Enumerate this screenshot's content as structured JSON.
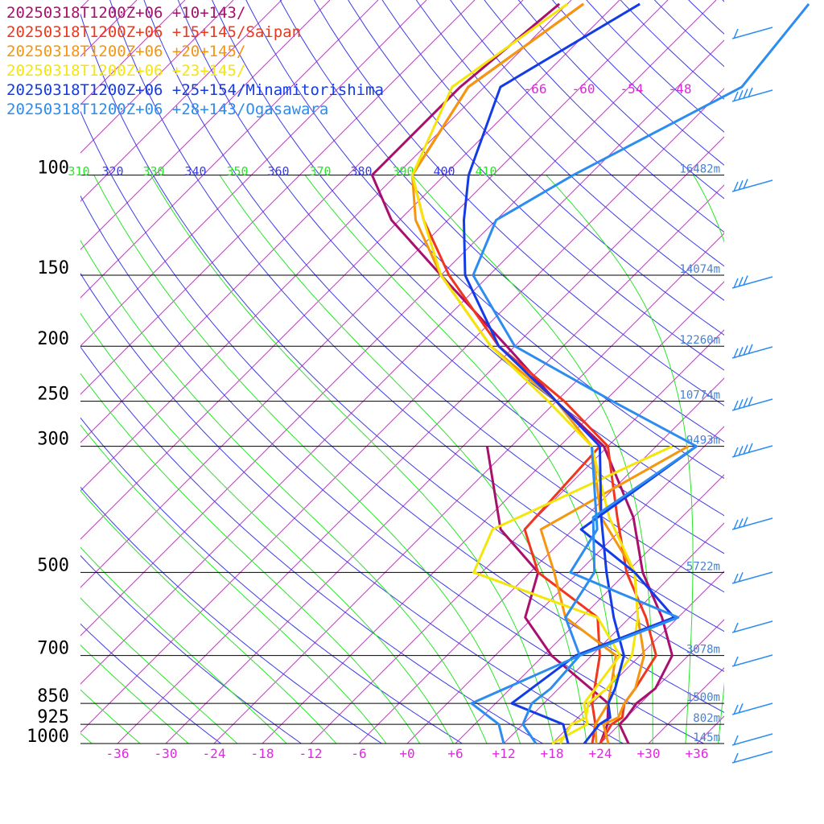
{
  "legend": [
    {
      "label": "20250318T1200Z+06 +10+143/",
      "color": "#aa0f6e"
    },
    {
      "label": "20250318T1200Z+06 +15+145/Saipan",
      "color": "#f0371e"
    },
    {
      "label": "20250318T1200Z+06 +20+145/",
      "color": "#f5960f"
    },
    {
      "label": "20250318T1200Z+06 +23+145/",
      "color": "#f5e60a"
    },
    {
      "label": "20250318T1200Z+06 +25+154/Minamitorishima",
      "color": "#143ce6"
    },
    {
      "label": "20250318T1200Z+06 +28+143/Ogasawara",
      "color": "#2d8cf0"
    }
  ],
  "chart_data": {
    "type": "line",
    "title": "",
    "xlabel": "",
    "ylabel": "",
    "pressure_levels": [
      100,
      150,
      200,
      250,
      300,
      500,
      700,
      850,
      925,
      1000
    ],
    "pressure_labels": [
      "100",
      "150",
      "200",
      "250",
      "300",
      "500",
      "700",
      "850",
      "925",
      "1000"
    ],
    "height_labels": [
      "16482m",
      "14074m",
      "12260m",
      "10774m",
      "9493m",
      "5722m",
      "3078m",
      "1500m",
      "802m",
      "145m"
    ],
    "temperature_ticks": [
      "-36",
      "-30",
      "-24",
      "-18",
      "-12",
      "-6",
      "+0",
      "+6",
      "+12",
      "+18",
      "+24",
      "+30",
      "+36"
    ],
    "upper_temperature_ticks": [
      "-66",
      "-60",
      "-54",
      "-48"
    ],
    "theta_labels": [
      "310",
      "320",
      "330",
      "340",
      "350",
      "360",
      "370",
      "380",
      "390",
      "400",
      "410"
    ],
    "series": [
      {
        "name": "20250318T1200Z+06 +10+143/",
        "temperature_p": [
          1000,
          925,
          900,
          850,
          800,
          700,
          600,
          500,
          400,
          300,
          250,
          200,
          150,
          120,
          100,
          70,
          50
        ],
        "temperature_C": [
          27.5,
          24.0,
          24.0,
          23.5,
          24.0,
          22.0,
          16.0,
          8.0,
          0.0,
          -12.5,
          -24.0,
          -37.0,
          -54.0,
          -67.0,
          -75.0,
          -75.0,
          -73.0
        ],
        "dewpoint_p": [
          1000,
          925,
          850,
          700,
          600,
          500,
          420,
          300
        ],
        "dewpoint_C": [
          24.0,
          22.5,
          20.0,
          7.0,
          -1.0,
          -5.0,
          -15.0,
          -27.0
        ]
      },
      {
        "name": "20250318T1200Z+06 +15+145/Saipan",
        "temperature_p": [
          1000,
          925,
          900,
          850,
          800,
          700,
          600,
          500,
          400,
          300,
          250,
          200,
          150,
          120,
          100,
          70,
          50
        ],
        "temperature_C": [
          24.0,
          23.0,
          23.5,
          22.0,
          21.5,
          20.0,
          14.0,
          6.0,
          -2.0,
          -12.0,
          -23.0,
          -38.0,
          -53.0,
          -63.0,
          -70.0,
          -74.0,
          -70.0
        ],
        "dewpoint_p": [
          1000,
          925,
          850,
          700,
          600,
          500,
          420,
          300
        ],
        "dewpoint_C": [
          23.0,
          21.0,
          18.0,
          13.0,
          8.0,
          -5.0,
          -12.0,
          -13.0
        ]
      },
      {
        "name": "20250318T1200Z+06 +20+145/",
        "temperature_p": [
          1000,
          925,
          900,
          850,
          800,
          700,
          600,
          500,
          400,
          300,
          250,
          200,
          150,
          120,
          100,
          70,
          50
        ],
        "temperature_C": [
          25.0,
          22.0,
          23.0,
          22.0,
          21.5,
          18.5,
          13.0,
          7.0,
          -4.0,
          -14.0,
          -24.0,
          -39.0,
          -54.0,
          -64.0,
          -70.0,
          -74.0,
          -70.0
        ],
        "dewpoint_p": [
          1000,
          925,
          850,
          700,
          600,
          500,
          420,
          300
        ],
        "dewpoint_C": [
          23.5,
          21.0,
          20.0,
          15.0,
          4.0,
          -3.0,
          -10.0,
          -2.0
        ]
      },
      {
        "name": "20250318T1200Z+06 +23+145/",
        "temperature_p": [
          1000,
          925,
          900,
          850,
          800,
          700,
          600,
          500,
          400,
          300,
          250,
          200,
          150,
          120,
          100,
          70,
          50
        ],
        "temperature_C": [
          19.0,
          18.0,
          19.0,
          17.5,
          18.0,
          17.0,
          13.0,
          7.0,
          -3.0,
          -14.0,
          -25.0,
          -39.0,
          -54.0,
          -63.0,
          -70.0,
          -76.0,
          -72.0
        ],
        "dewpoint_p": [
          1000,
          925,
          850,
          700,
          600,
          500,
          420,
          300
        ],
        "dewpoint_C": [
          18.0,
          20.0,
          17.0,
          15.5,
          8.0,
          -13.0,
          -16.0,
          -4.0
        ]
      },
      {
        "name": "20250318T1200Z+06 +25+154/Minamitorishima",
        "temperature_p": [
          1000,
          925,
          900,
          850,
          800,
          700,
          600,
          500,
          400,
          300,
          250,
          200,
          150,
          120,
          100,
          70,
          50
        ],
        "temperature_C": [
          22.0,
          21.5,
          22.0,
          20.0,
          19.0,
          16.0,
          10.0,
          3.5,
          -4.0,
          -13.0,
          -24.0,
          -38.0,
          -51.0,
          -58.0,
          -63.0,
          -70.0,
          -63.0
        ],
        "dewpoint_p": [
          1000,
          925,
          850,
          700,
          600,
          500,
          420,
          300
        ],
        "dewpoint_C": [
          20.0,
          17.0,
          8.0,
          10.0,
          17.5,
          7.0,
          -5.0,
          -1.0
        ]
      },
      {
        "name": "20250318T1200Z+06 +28+143/Ogasawara",
        "temperature_p": [
          1000,
          925,
          900,
          850,
          800,
          700,
          600,
          500,
          400,
          300,
          250,
          200,
          150,
          120,
          100,
          70,
          50
        ],
        "temperature_C": [
          16.0,
          12.0,
          11.5,
          10.5,
          11.0,
          10.5,
          4.0,
          2.0,
          -5.0,
          -1.0,
          -17.0,
          -36.0,
          -50.0,
          -54.0,
          -50.0,
          -40.0,
          -42.0
        ],
        "dewpoint_p": [
          1000,
          925,
          850,
          700,
          600,
          500,
          420,
          300
        ],
        "dewpoint_C": [
          12.0,
          9.0,
          3.0,
          10.5,
          18.0,
          -1.0,
          -3.0,
          -14.0
        ]
      }
    ],
    "wind_barb_color": "#2d8cf0",
    "grid": true
  },
  "colors": {
    "isotherm": "#e128e1",
    "dry_adiabat": "#3c3ce6",
    "moist_adiabat": "#28e628",
    "isobar": "#000000",
    "height_label": "#4682d2",
    "pressure_label": "#000000"
  }
}
